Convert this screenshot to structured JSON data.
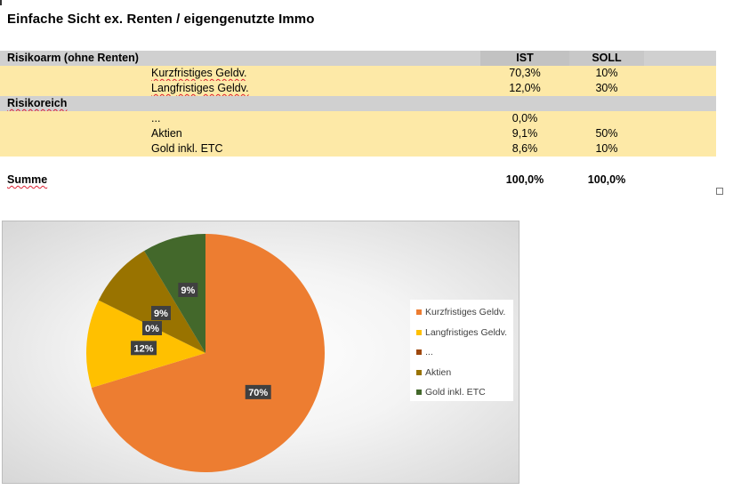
{
  "title": "Einfache Sicht ex. Renten / eigengenutzte Immo",
  "table": {
    "group1_label": "Risikoarm (ohne Renten)",
    "ist_header": "IST",
    "soll_header": "SOLL",
    "group1_rows": [
      {
        "label": "Kurzfristiges Geldv.",
        "ist": "70,3%",
        "soll": "10%"
      },
      {
        "label": "Langfristiges Geldv.",
        "ist": "12,0%",
        "soll": "30%"
      }
    ],
    "group2_label": "Risikoreich",
    "group2_rows": [
      {
        "label": "...",
        "ist": "0,0%",
        "soll": ""
      },
      {
        "label": "Aktien",
        "ist": "9,1%",
        "soll": "50%"
      },
      {
        "label": "Gold inkl. ETC",
        "ist": "8,6%",
        "soll": "10%"
      }
    ],
    "sum_label": "Summe",
    "sum_ist": "100,0%",
    "sum_soll": "100,0%"
  },
  "chart_data": {
    "type": "pie",
    "categories": [
      "Kurzfristiges Geldv.",
      "Langfristiges Geldv.",
      "...",
      "Aktien",
      "Gold inkl. ETC"
    ],
    "values": [
      70.3,
      12.0,
      0.0,
      9.1,
      8.6
    ],
    "data_labels": [
      "70%",
      "12%",
      "0%",
      "9%",
      "9%"
    ],
    "colors": [
      "#ed7d31",
      "#ffc000",
      "#9e480e",
      "#997300",
      "#43682b"
    ],
    "legend_placement": "right"
  }
}
